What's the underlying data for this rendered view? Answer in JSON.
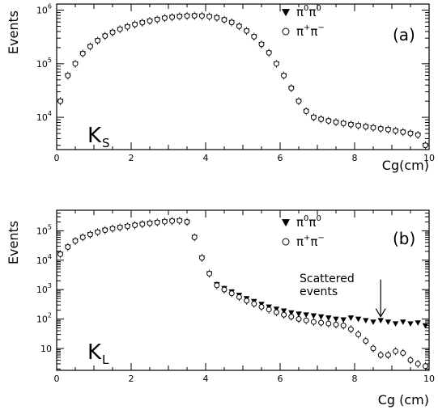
{
  "chart_data": [
    {
      "type": "scatter",
      "panel_tag": "(a)",
      "particle_main": "K",
      "particle_sub": "S",
      "ylabel": "Events",
      "xlabel": "Cg(cm)",
      "xlim": [
        0,
        10
      ],
      "ylim": [
        2500,
        1300000
      ],
      "yscale": "log",
      "x_ticks": [
        0,
        2,
        4,
        6,
        8,
        10
      ],
      "y_ticks": [
        {
          "value": 10000,
          "base": "10",
          "exp": "4"
        },
        {
          "value": 100000,
          "base": "10",
          "exp": "5"
        },
        {
          "value": 1000000,
          "base": "10",
          "exp": "6"
        }
      ],
      "legend": {
        "placement": "top-right",
        "entries": [
          {
            "marker": "triangle-down-filled",
            "base1": "π",
            "sup1": "0",
            "base2": "π",
            "sup2": "0"
          },
          {
            "marker": "circle-open",
            "base1": "π",
            "sup1": "+",
            "base2": "π",
            "sup2": "−"
          }
        ]
      },
      "x": [
        0.1,
        0.3,
        0.5,
        0.7,
        0.9,
        1.1,
        1.3,
        1.5,
        1.7,
        1.9,
        2.1,
        2.3,
        2.5,
        2.7,
        2.9,
        3.1,
        3.3,
        3.5,
        3.7,
        3.9,
        4.1,
        4.3,
        4.5,
        4.7,
        4.9,
        5.1,
        5.3,
        5.5,
        5.7,
        5.9,
        6.1,
        6.3,
        6.5,
        6.7,
        6.9,
        7.1,
        7.3,
        7.5,
        7.7,
        7.9,
        8.1,
        8.3,
        8.5,
        8.7,
        8.9,
        9.1,
        9.3,
        9.5,
        9.7,
        9.9
      ],
      "series": [
        {
          "name": "π0π0",
          "marker": "triangle-down-filled",
          "values": [
            20000,
            60000,
            100000,
            155000,
            210000,
            270000,
            330000,
            385000,
            440000,
            490000,
            540000,
            585000,
            630000,
            670000,
            710000,
            740000,
            765000,
            780000,
            785000,
            780000,
            760000,
            720000,
            660000,
            590000,
            500000,
            410000,
            320000,
            230000,
            160000,
            100000,
            60000,
            35000,
            20000,
            13000,
            10000,
            9200,
            8600,
            8100,
            7700,
            7300,
            7000,
            6700,
            6400,
            6100,
            5900,
            5600,
            5300,
            5000,
            4700,
            3000
          ]
        },
        {
          "name": "π+π−",
          "marker": "circle-open",
          "values": [
            20000,
            60000,
            100000,
            155000,
            210000,
            270000,
            330000,
            385000,
            440000,
            490000,
            540000,
            585000,
            630000,
            670000,
            710000,
            740000,
            765000,
            780000,
            785000,
            780000,
            760000,
            720000,
            660000,
            590000,
            500000,
            410000,
            320000,
            230000,
            160000,
            100000,
            60000,
            35000,
            20000,
            13000,
            10000,
            9200,
            8600,
            8100,
            7700,
            7300,
            7000,
            6700,
            6400,
            6100,
            5900,
            5600,
            5300,
            5000,
            4700,
            3000
          ]
        }
      ]
    },
    {
      "type": "scatter",
      "panel_tag": "(b)",
      "particle_main": "K",
      "particle_sub": "L",
      "ylabel": "Events",
      "xlabel": "Cg (cm)",
      "xlim": [
        0,
        10
      ],
      "ylim": [
        1.8,
        500000
      ],
      "yscale": "log",
      "x_ticks": [
        0,
        2,
        4,
        6,
        8,
        10
      ],
      "y_ticks": [
        {
          "value": 10,
          "base": "10",
          "exp": ""
        },
        {
          "value": 100,
          "base": "10",
          "exp": "2"
        },
        {
          "value": 1000,
          "base": "10",
          "exp": "3"
        },
        {
          "value": 10000,
          "base": "10",
          "exp": "4"
        },
        {
          "value": 100000,
          "base": "10",
          "exp": "5"
        }
      ],
      "legend": {
        "placement": "top-right",
        "entries": [
          {
            "marker": "triangle-down-filled",
            "base1": "π",
            "sup1": "0",
            "base2": "π",
            "sup2": "0"
          },
          {
            "marker": "circle-open",
            "base1": "π",
            "sup1": "+",
            "base2": "π",
            "sup2": "−"
          }
        ]
      },
      "annotation": {
        "line1": "Scattered",
        "line2": "events",
        "arrow_x": 8.7,
        "arrow_from": 2200,
        "arrow_to": 120
      },
      "x": [
        0.1,
        0.3,
        0.5,
        0.7,
        0.9,
        1.1,
        1.3,
        1.5,
        1.7,
        1.9,
        2.1,
        2.3,
        2.5,
        2.7,
        2.9,
        3.1,
        3.3,
        3.5,
        3.7,
        3.9,
        4.1,
        4.3,
        4.5,
        4.7,
        4.9,
        5.1,
        5.3,
        5.5,
        5.7,
        5.9,
        6.1,
        6.3,
        6.5,
        6.7,
        6.9,
        7.1,
        7.3,
        7.5,
        7.7,
        7.9,
        8.1,
        8.3,
        8.5,
        8.7,
        8.9,
        9.1,
        9.3,
        9.5,
        9.7,
        9.9
      ],
      "series": [
        {
          "name": "π0π0",
          "marker": "triangle-down-filled",
          "values": [
            16000,
            28000,
            45000,
            60000,
            75000,
            90000,
            105000,
            118000,
            130000,
            142000,
            155000,
            168000,
            180000,
            192000,
            205000,
            215000,
            220000,
            200000,
            60000,
            12000,
            3500,
            1500,
            1100,
            850,
            650,
            500,
            400,
            320,
            260,
            220,
            190,
            165,
            150,
            140,
            130,
            120,
            110,
            100,
            95,
            110,
            100,
            90,
            80,
            90,
            80,
            70,
            80,
            70,
            75,
            60
          ]
        },
        {
          "name": "π+π−",
          "marker": "circle-open",
          "values": [
            16000,
            28000,
            45000,
            60000,
            75000,
            90000,
            105000,
            118000,
            130000,
            142000,
            155000,
            168000,
            180000,
            192000,
            205000,
            215000,
            220000,
            200000,
            60000,
            12000,
            3500,
            1400,
            1000,
            750,
            560,
            420,
            330,
            260,
            210,
            170,
            140,
            120,
            100,
            90,
            80,
            75,
            70,
            65,
            60,
            45,
            30,
            18,
            10,
            6,
            6,
            8,
            7,
            4,
            3,
            2.5
          ]
        }
      ]
    }
  ]
}
